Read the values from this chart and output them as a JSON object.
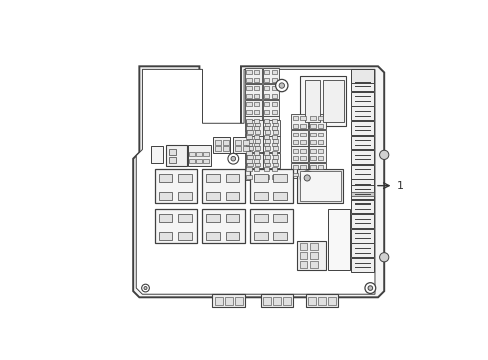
{
  "bg_color": "#ffffff",
  "lc": "#404040",
  "lc2": "#666666",
  "fc_body": "#f8f8f8",
  "fc_white": "#ffffff",
  "fc_gray": "#d8d8d8",
  "fc_lgray": "#eeeeee",
  "figsize": [
    4.89,
    3.6
  ],
  "dpi": 100
}
